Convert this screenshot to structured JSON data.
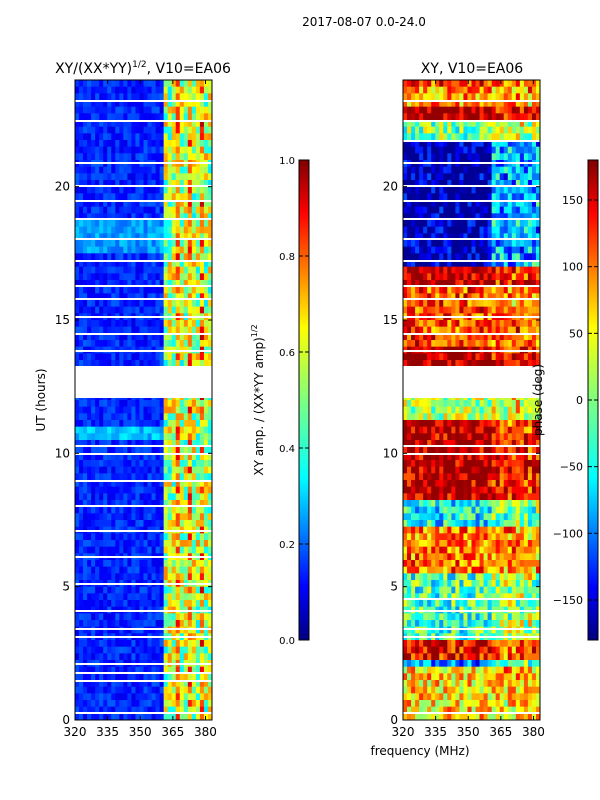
{
  "figure": {
    "suptitle": "2017-08-07 0.0-24.0",
    "xlabel_shared": "frequency (MHz)"
  },
  "chart_data": [
    {
      "type": "heatmap",
      "title": "XY/(XX*YY)",
      "title_sup": "1/2",
      "title_suffix": ", V10=EA06",
      "ylabel": "UT (hours)",
      "x": {
        "range": [
          320,
          383
        ],
        "ticks": [
          320,
          335,
          350,
          365,
          380
        ]
      },
      "y": {
        "range": [
          0,
          24
        ],
        "ticks": [
          0,
          5,
          10,
          15,
          20
        ]
      },
      "colorbar": {
        "label": "XY amp. / (XX*YY amp)",
        "label_sup": "1/2",
        "range": [
          0.0,
          1.0
        ],
        "ticks": [
          "0.0",
          "0.2",
          "0.4",
          "0.6",
          "0.8",
          "1.0"
        ],
        "colormap": "jet"
      }
    },
    {
      "type": "heatmap",
      "title": "XY, V10=EA06",
      "x": {
        "range": [
          320,
          383
        ],
        "ticks": [
          320,
          335,
          350,
          365,
          380
        ]
      },
      "y": {
        "range": [
          0,
          24
        ],
        "ticks": [
          0,
          5,
          10,
          15,
          20
        ]
      },
      "colorbar": {
        "label": "phase (deg)",
        "range": [
          -180,
          180
        ],
        "ticks": [
          "−150",
          "−100",
          "−50",
          "0",
          "50",
          "100",
          "150"
        ],
        "tick_values": [
          -150,
          -100,
          -50,
          0,
          50,
          100,
          150
        ],
        "colormap": "jet"
      }
    }
  ],
  "colors": {
    "jet": [
      "#00007f",
      "#0000ff",
      "#007fff",
      "#00ffff",
      "#7fff7f",
      "#ffff00",
      "#ff7f00",
      "#ff0000",
      "#7f0000"
    ]
  }
}
